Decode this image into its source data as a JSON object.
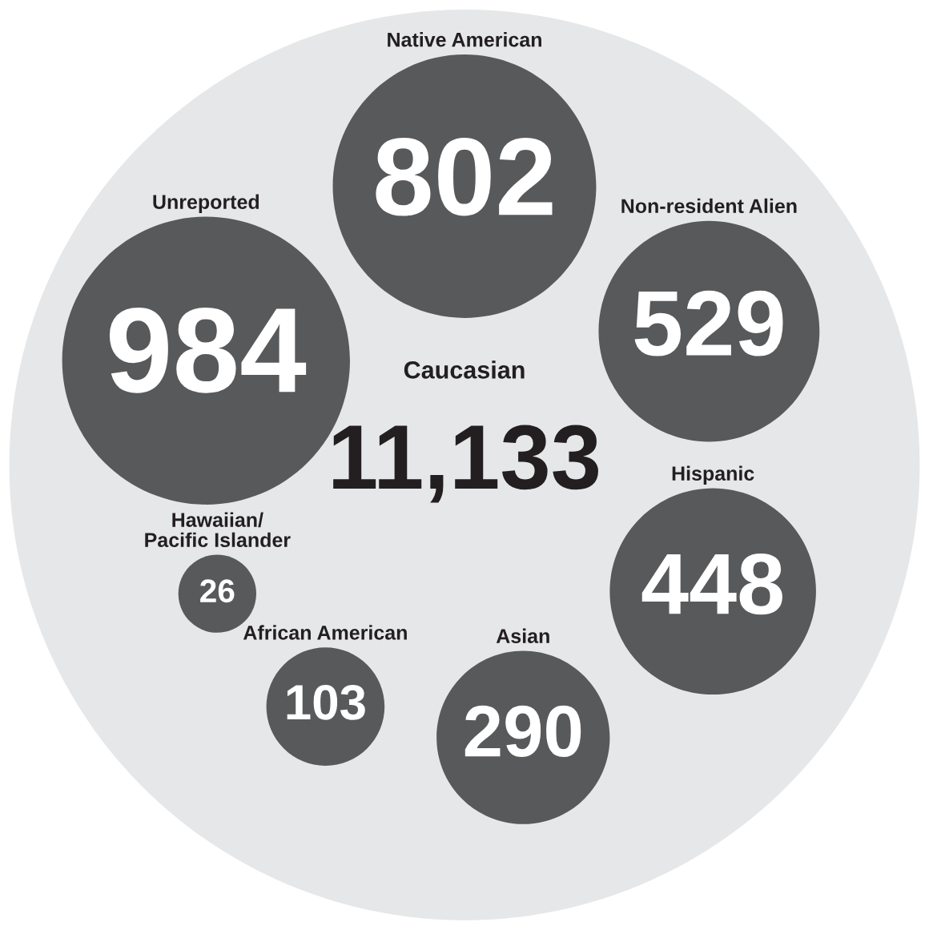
{
  "chart_data": {
    "type": "other",
    "categories": [
      "Native American",
      "Non-resident Alien",
      "Hispanic",
      "Asian",
      "African American",
      "Hawaiian/\nPacific Islander",
      "Unreported",
      "Caucasian"
    ],
    "values": [
      802,
      529,
      448,
      290,
      103,
      26,
      984,
      11133
    ],
    "value_labels": [
      "802",
      "529",
      "448",
      "290",
      "103",
      "26",
      "984",
      "11,133"
    ],
    "colors": [
      "#58595b",
      "#58595b",
      "#58595b",
      "#58595b",
      "#58595b",
      "#58595b",
      "#58595b",
      "#e6e7e8"
    ]
  }
}
